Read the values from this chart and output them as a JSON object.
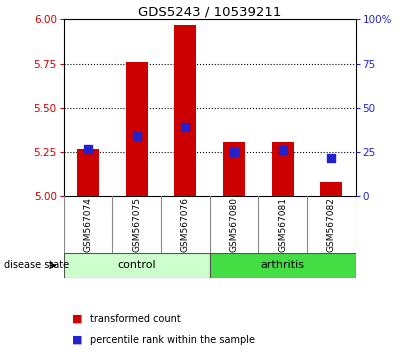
{
  "title": "GDS5243 / 10539211",
  "samples": [
    "GSM567074",
    "GSM567075",
    "GSM567076",
    "GSM567080",
    "GSM567081",
    "GSM567082"
  ],
  "red_bar_tops": [
    5.27,
    5.76,
    5.97,
    5.31,
    5.31,
    5.08
  ],
  "blue_marker_y": [
    5.27,
    5.34,
    5.39,
    5.25,
    5.26,
    5.22
  ],
  "bar_bottom": 5.0,
  "ylim_left": [
    5.0,
    6.0
  ],
  "ylim_right": [
    0,
    100
  ],
  "yticks_left": [
    5.0,
    5.25,
    5.5,
    5.75,
    6.0
  ],
  "yticks_right": [
    0,
    25,
    50,
    75,
    100
  ],
  "control_indices": [
    0,
    1,
    2
  ],
  "arthritis_indices": [
    3,
    4,
    5
  ],
  "control_label": "control",
  "arthritis_label": "arthritis",
  "disease_state_label": "disease state",
  "legend_red": "transformed count",
  "legend_blue": "percentile rank within the sample",
  "bar_color": "#cc0000",
  "blue_color": "#2222cc",
  "control_bg_light": "#ccffcc",
  "arthritis_bg": "#44dd44",
  "sample_box_bg": "#cccccc",
  "plot_bg": "white"
}
